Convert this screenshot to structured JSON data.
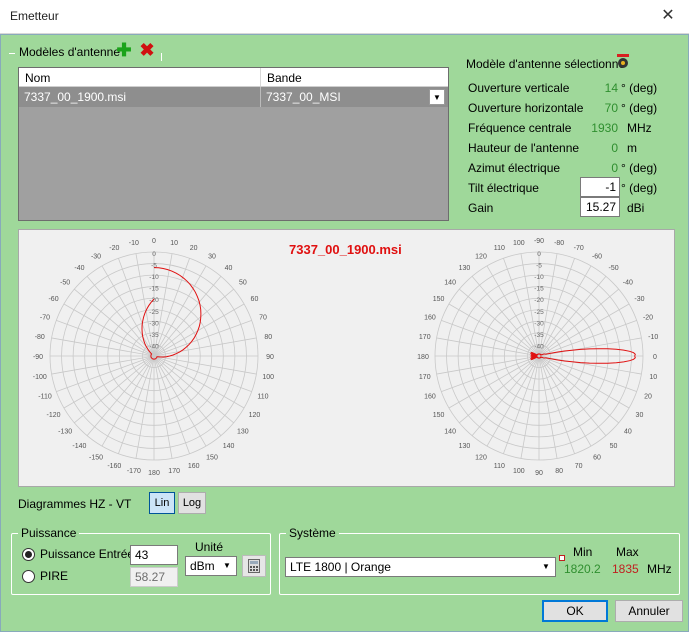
{
  "window": {
    "title": "Emetteur",
    "close_glyph": "✕"
  },
  "models": {
    "group_label": "Modèles d'antenne",
    "columns": [
      "Nom",
      "Bande"
    ],
    "rows": [
      {
        "name": "7337_00_1900.msi",
        "band": "7337_00_MSI"
      }
    ]
  },
  "selected": {
    "group_label": "Modèle d'antenne sélectionné",
    "props": [
      {
        "label": "Ouverture verticale",
        "value": "14",
        "unit": "° (deg)"
      },
      {
        "label": "Ouverture horizontale",
        "value": "70",
        "unit": "° (deg)"
      },
      {
        "label": "Fréquence centrale",
        "value": "1930",
        "unit": "MHz"
      },
      {
        "label": "Hauteur de l'antenne",
        "value": "0",
        "unit": "m"
      },
      {
        "label": "Azimut électrique",
        "value": "0",
        "unit": "° (deg)"
      },
      {
        "label": "Tilt électrique",
        "value": "-1",
        "unit": "° (deg)"
      },
      {
        "label": "Gain",
        "value": "15.27",
        "unit": "dBi"
      }
    ]
  },
  "diagram": {
    "title": "7337_00_1900.msi",
    "left_angle_labels": [
      "0",
      "10",
      "20",
      "30",
      "40",
      "50",
      "60",
      "70",
      "80",
      "90",
      "100",
      "110",
      "120",
      "130",
      "140",
      "150",
      "160",
      "170",
      "180",
      "-170",
      "-160",
      "-150",
      "-140",
      "-130",
      "-120",
      "-110",
      "-100",
      "-90",
      "-80",
      "-70",
      "-60",
      "-50",
      "-40",
      "-30",
      "-20",
      "-10"
    ],
    "left_radial_labels": [
      "0",
      "-5",
      "-10",
      "-15",
      "-20",
      "-25",
      "-30",
      "-35",
      "-40"
    ],
    "right_angle_labels": [
      "-90",
      "-80",
      "-70",
      "-60",
      "-50",
      "-40",
      "-30",
      "-20",
      "-10",
      "0",
      "10",
      "20",
      "30",
      "40",
      "50",
      "60",
      "70",
      "80",
      "90",
      "100",
      "110",
      "120",
      "130",
      "140",
      "150",
      "160",
      "170",
      "180",
      "170",
      "160",
      "150",
      "140",
      "130",
      "120",
      "110",
      "100"
    ],
    "right_radial_labels": [
      "0",
      "-5",
      "-10",
      "-15",
      "-20",
      "-25",
      "-30",
      "-35",
      "-40"
    ],
    "footer_label": "Diagrammes HZ - VT",
    "lin_label": "Lin",
    "log_label": "Log",
    "trace_color": "#e01010"
  },
  "puissance": {
    "group_label": "Puissance",
    "entree_label": "Puissance Entrée",
    "entree_value": "43",
    "pire_label": "PIRE",
    "pire_value": "58.27",
    "unite_label": "Unité",
    "unite_value": "dBm"
  },
  "systeme": {
    "group_label": "Système",
    "value": "LTE 1800 | Orange",
    "min_label": "Min",
    "max_label": "Max",
    "min_value": "1820.2",
    "max_value": "1835",
    "unit": "MHz"
  },
  "buttons": {
    "ok": "OK",
    "cancel": "Annuler"
  }
}
